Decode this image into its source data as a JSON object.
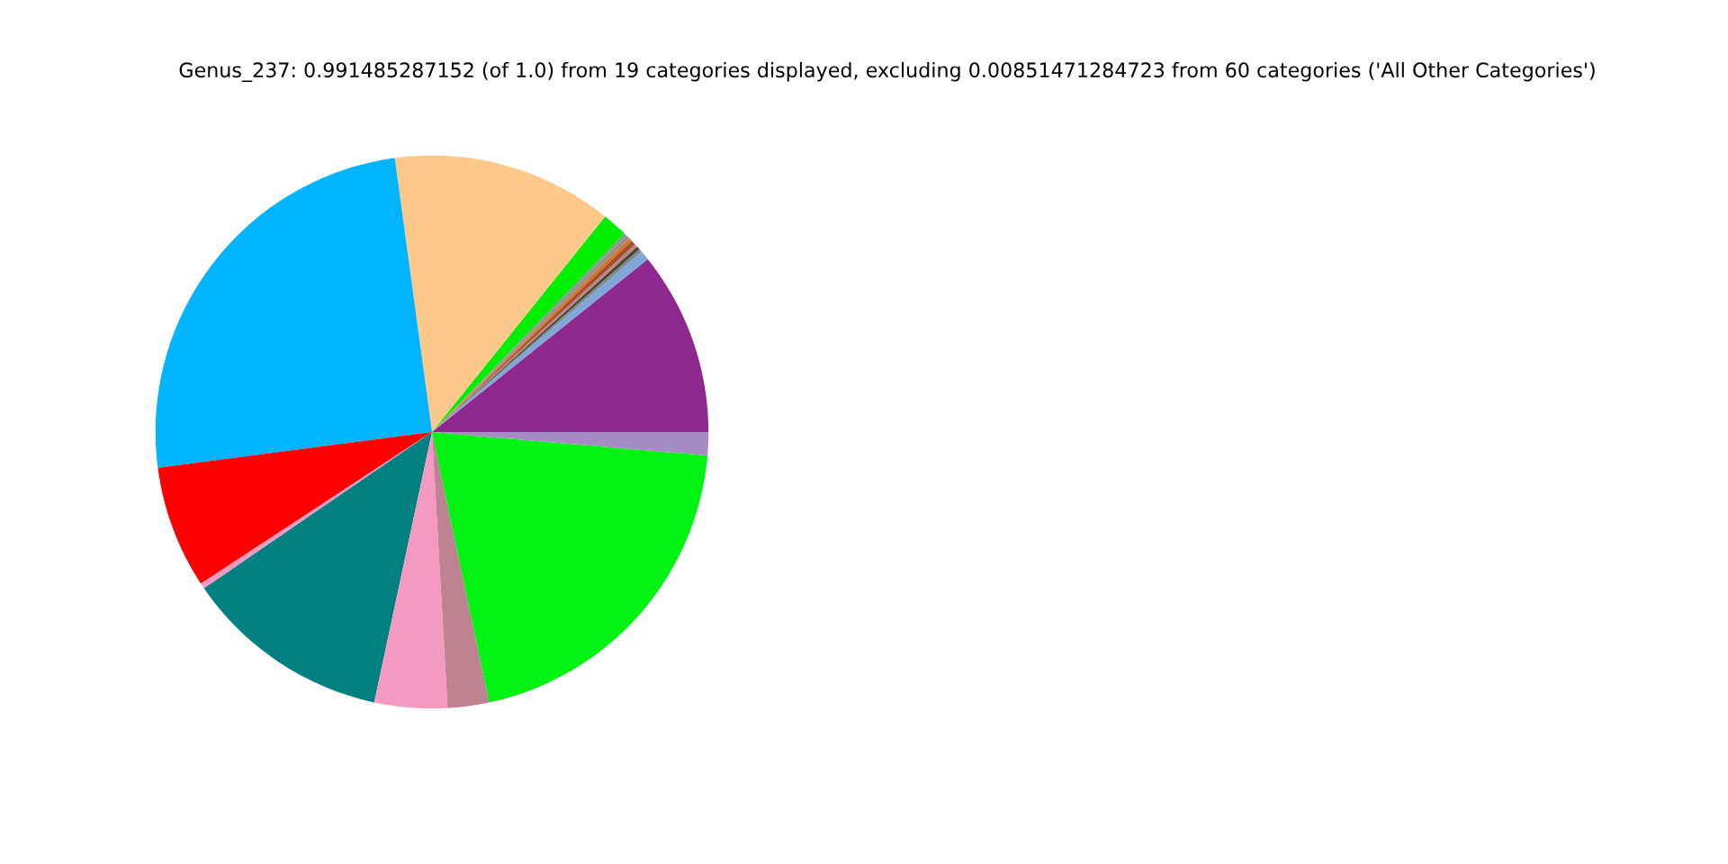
{
  "chart_data": {
    "type": "pie",
    "title": "Genus_237: 0.991485287152 (of 1.0) from 19 categories displayed, excluding 0.00851471284723 from 60 categories ('All Other Categories')",
    "categories": [
      null,
      null,
      null,
      null,
      null,
      null,
      null,
      null,
      null,
      null,
      null,
      null,
      null,
      null,
      null,
      null,
      null,
      null,
      null
    ],
    "values": [
      10.75,
      0.56,
      0.19,
      0.19,
      0.19,
      0.28,
      0.19,
      0.22,
      0.19,
      1.47,
      12.92,
      24.92,
      7.17,
      0.33,
      12.08,
      4.25,
      2.42,
      20.33,
      1.35
    ],
    "colors": [
      "#8e288e",
      "#7fa7d8",
      "#808890",
      "#404a28",
      "#c08090",
      "#a0522d",
      "#e07020",
      "#909090",
      "#8a9a80",
      "#00ee00",
      "#fcc98a",
      "#00b4ff",
      "#ff0000",
      "#f49ac2",
      "#008080",
      "#f49ac2",
      "#bf8290",
      "#00f312",
      "#a68bc4"
    ],
    "legend": false
  }
}
